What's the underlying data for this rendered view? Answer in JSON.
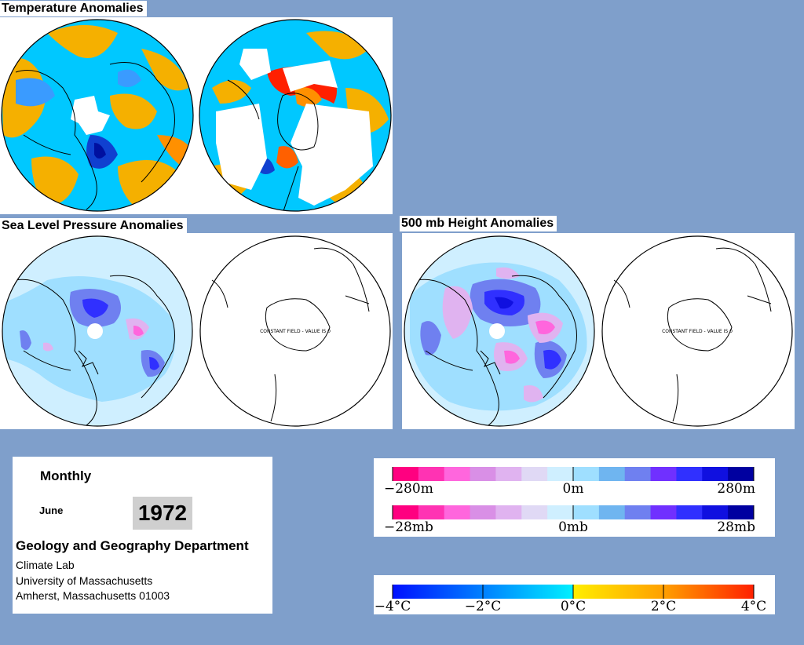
{
  "titles": {
    "temperature": "Temperature Anomalies",
    "slp": "Sea Level Pressure Anomalies",
    "height500": "500 mb Height Anomalies"
  },
  "constant_field_note": "CONSTANT FIELD - VALUE IS 0",
  "info": {
    "frequency": "Monthly",
    "month": "June",
    "year": "1972",
    "department": "Geology and Geography Department",
    "lines": [
      "Climate Lab",
      "University of Massachusetts",
      "Amherst, Massachusetts 01003"
    ]
  },
  "legends": {
    "height": {
      "left": "−280m",
      "mid": "0m",
      "right": "280m"
    },
    "pressure": {
      "left": "−28mb",
      "mid": "0mb",
      "right": "28mb"
    },
    "temperature": {
      "ticks": [
        "−4°C",
        "−2°C",
        "0°C",
        "2°C",
        "4°C"
      ]
    }
  },
  "colors": {
    "background": "#7f9fcb",
    "anomaly_scale": [
      "#ff0080",
      "#ff33b3",
      "#ff66dd",
      "#d98fe6",
      "#e0b3f0",
      "#e0d9f5",
      "#cfefff",
      "#9fdfff",
      "#6fb5f0",
      "#6f80f0",
      "#7030ff",
      "#3030ff",
      "#1010e0",
      "#0000a0"
    ],
    "temperature_scale": [
      "#0030ff",
      "#0070ff",
      "#00b0ff",
      "#00e0ff",
      "#ffd000",
      "#ffa000",
      "#ff6000",
      "#ff2000"
    ]
  }
}
